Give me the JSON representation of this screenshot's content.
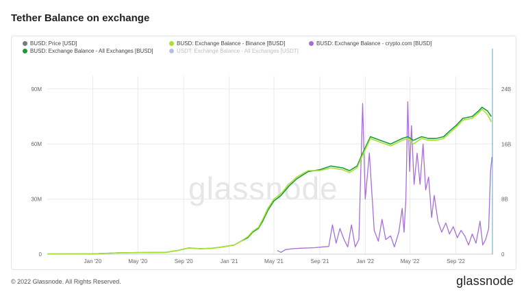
{
  "title": "Tether Balance on exchange",
  "watermark": "glassnode",
  "footer": {
    "copyright": "© 2022 Glassnode. All Rights Reserved.",
    "brand": "glassnode"
  },
  "colors": {
    "grid": "#e9e9e9",
    "all_exchanges": "#1a9a3a",
    "binance": "#a6e22e",
    "crypto_com": "#a46fd4",
    "price": "#7a7a7a",
    "usdt": "#2d4ea8",
    "usdt_bar": "#5aa6c8"
  },
  "legend": [
    {
      "label": "BUSD: Price [USD]",
      "color": "#7a7a7a",
      "faded": false
    },
    {
      "label": "BUSD: Exchange Balance - Binance [BUSD]",
      "color": "#a6e22e",
      "faded": false
    },
    {
      "label": "BUSD: Exchange Balance - crypto.com [BUSD]",
      "color": "#a46fd4",
      "faded": false
    },
    {
      "label": "BUSD: Exchange Balance - All Exchanges [BUSD]",
      "color": "#1a9a3a",
      "faded": false
    },
    {
      "label": "USDT: Exchange Balance - All Exchanges [USDT]",
      "color": "#2d4ea8",
      "faded": true
    }
  ],
  "chart_data": {
    "type": "line",
    "x_tick_labels": [
      "Jan '20",
      "May '20",
      "Sep '20",
      "Jan '21",
      "May '21",
      "Sep '21",
      "Jan '22",
      "May '22",
      "Sep '22"
    ],
    "x_tick_dates": [
      "2020-01-01",
      "2020-05-01",
      "2020-09-01",
      "2021-01-01",
      "2021-05-01",
      "2021-09-01",
      "2022-01-01",
      "2022-05-01",
      "2022-09-01"
    ],
    "x_range": [
      "2019-09-01",
      "2022-12-10"
    ],
    "y_left": {
      "ticks": [
        0,
        30,
        60,
        90
      ],
      "tick_labels": [
        "0",
        "30M",
        "60M",
        "90M"
      ],
      "range": [
        0,
        97
      ],
      "unit": "M"
    },
    "y_right": {
      "ticks": [
        0,
        8,
        16,
        24
      ],
      "tick_labels": [
        "0",
        "8B",
        "16B",
        "24B"
      ],
      "range": [
        0,
        25.9
      ],
      "unit": "B"
    },
    "grid": true,
    "legend_position": "top-left",
    "series": [
      {
        "name": "BUSD: Exchange Balance - All Exchanges [BUSD]",
        "axis": "left",
        "points": [
          [
            "2019-09-01",
            0.1
          ],
          [
            "2020-01-01",
            0.2
          ],
          [
            "2020-03-15",
            0.8
          ],
          [
            "2020-06-01",
            0.9
          ],
          [
            "2020-07-15",
            1.0
          ],
          [
            "2020-08-15",
            2.0
          ],
          [
            "2020-09-15",
            3.4
          ],
          [
            "2020-10-15",
            3.0
          ],
          [
            "2020-11-15",
            3.2
          ],
          [
            "2020-12-15",
            4.0
          ],
          [
            "2021-01-15",
            5.0
          ],
          [
            "2021-02-01",
            7.0
          ],
          [
            "2021-02-20",
            9.0
          ],
          [
            "2021-03-05",
            12.0
          ],
          [
            "2021-03-20",
            14.0
          ],
          [
            "2021-04-01",
            18.0
          ],
          [
            "2021-04-15",
            24.0
          ],
          [
            "2021-05-01",
            29.0
          ],
          [
            "2021-05-20",
            32.0
          ],
          [
            "2021-06-10",
            37.0
          ],
          [
            "2021-07-01",
            41.0
          ],
          [
            "2021-08-01",
            45.0
          ],
          [
            "2021-09-01",
            46.0
          ],
          [
            "2021-10-01",
            48.0
          ],
          [
            "2021-11-01",
            47.0
          ],
          [
            "2021-11-20",
            45.5
          ],
          [
            "2021-12-10",
            48.0
          ],
          [
            "2021-12-25",
            55.0
          ],
          [
            "2022-01-15",
            64.0
          ],
          [
            "2022-02-10",
            62.0
          ],
          [
            "2022-03-10",
            60.0
          ],
          [
            "2022-04-10",
            63.0
          ],
          [
            "2022-04-25",
            64.0
          ],
          [
            "2022-05-10",
            62.0
          ],
          [
            "2022-06-01",
            64.0
          ],
          [
            "2022-06-20",
            63.0
          ],
          [
            "2022-07-10",
            63.0
          ],
          [
            "2022-07-30",
            64.0
          ],
          [
            "2022-08-15",
            67.0
          ],
          [
            "2022-09-01",
            70.0
          ],
          [
            "2022-09-20",
            74.0
          ],
          [
            "2022-10-15",
            75.0
          ],
          [
            "2022-11-01",
            78.0
          ],
          [
            "2022-11-10",
            80.0
          ],
          [
            "2022-11-25",
            78.0
          ],
          [
            "2022-12-05",
            75.0
          ]
        ]
      },
      {
        "name": "BUSD: Exchange Balance - Binance [BUSD]",
        "axis": "left",
        "points": [
          [
            "2019-09-01",
            0.1
          ],
          [
            "2020-01-01",
            0.2
          ],
          [
            "2020-03-15",
            0.8
          ],
          [
            "2020-06-01",
            0.9
          ],
          [
            "2020-07-15",
            1.0
          ],
          [
            "2020-08-15",
            2.0
          ],
          [
            "2020-09-15",
            3.4
          ],
          [
            "2020-10-15",
            3.0
          ],
          [
            "2020-11-15",
            3.2
          ],
          [
            "2020-12-15",
            4.0
          ],
          [
            "2021-01-15",
            5.0
          ],
          [
            "2021-02-01",
            7.0
          ],
          [
            "2021-02-20",
            9.5
          ],
          [
            "2021-03-05",
            12.5
          ],
          [
            "2021-03-20",
            14.5
          ],
          [
            "2021-04-01",
            19.0
          ],
          [
            "2021-04-15",
            25.0
          ],
          [
            "2021-05-01",
            30.0
          ],
          [
            "2021-05-20",
            33.0
          ],
          [
            "2021-06-10",
            38.0
          ],
          [
            "2021-07-01",
            42.0
          ],
          [
            "2021-08-01",
            45.5
          ],
          [
            "2021-09-01",
            45.5
          ],
          [
            "2021-10-01",
            47.0
          ],
          [
            "2021-11-01",
            46.0
          ],
          [
            "2021-11-20",
            44.5
          ],
          [
            "2021-12-10",
            47.0
          ],
          [
            "2021-12-25",
            54.0
          ],
          [
            "2022-01-15",
            63.0
          ],
          [
            "2022-02-10",
            61.0
          ],
          [
            "2022-03-10",
            59.0
          ],
          [
            "2022-04-10",
            62.0
          ],
          [
            "2022-04-25",
            63.0
          ],
          [
            "2022-05-10",
            60.0
          ],
          [
            "2022-06-01",
            63.0
          ],
          [
            "2022-06-20",
            62.0
          ],
          [
            "2022-07-10",
            62.0
          ],
          [
            "2022-07-30",
            63.0
          ],
          [
            "2022-08-15",
            66.0
          ],
          [
            "2022-09-01",
            69.0
          ],
          [
            "2022-09-20",
            73.0
          ],
          [
            "2022-10-15",
            74.0
          ],
          [
            "2022-11-01",
            77.0
          ],
          [
            "2022-11-10",
            79.0
          ],
          [
            "2022-11-25",
            76.0
          ],
          [
            "2022-12-05",
            72.0
          ]
        ]
      },
      {
        "name": "BUSD: Exchange Balance - crypto.com [BUSD]",
        "axis": "left",
        "points": [
          [
            "2021-05-10",
            2.0
          ],
          [
            "2021-05-20",
            1.0
          ],
          [
            "2021-06-01",
            2.5
          ],
          [
            "2021-06-20",
            3.0
          ],
          [
            "2021-07-15",
            3.3
          ],
          [
            "2021-08-15",
            3.5
          ],
          [
            "2021-09-10",
            4.0
          ],
          [
            "2021-09-25",
            4.2
          ],
          [
            "2021-10-05",
            16.0
          ],
          [
            "2021-10-15",
            6.0
          ],
          [
            "2021-10-25",
            14.0
          ],
          [
            "2021-11-05",
            8.0
          ],
          [
            "2021-11-15",
            4.0
          ],
          [
            "2021-11-25",
            16.0
          ],
          [
            "2021-12-05",
            4.0
          ],
          [
            "2021-12-15",
            8.0
          ],
          [
            "2021-12-25",
            82.0
          ],
          [
            "2022-01-01",
            30.0
          ],
          [
            "2022-01-12",
            55.0
          ],
          [
            "2022-01-25",
            13.0
          ],
          [
            "2022-02-05",
            7.0
          ],
          [
            "2022-02-15",
            19.0
          ],
          [
            "2022-02-25",
            8.0
          ],
          [
            "2022-03-10",
            10.0
          ],
          [
            "2022-03-20",
            4.0
          ],
          [
            "2022-04-01",
            12.0
          ],
          [
            "2022-04-10",
            25.0
          ],
          [
            "2022-04-15",
            12.0
          ],
          [
            "2022-04-20",
            30.0
          ],
          [
            "2022-04-25",
            83.0
          ],
          [
            "2022-04-30",
            45.0
          ],
          [
            "2022-05-05",
            70.0
          ],
          [
            "2022-05-12",
            38.0
          ],
          [
            "2022-05-20",
            55.0
          ],
          [
            "2022-05-28",
            38.0
          ],
          [
            "2022-06-05",
            60.0
          ],
          [
            "2022-06-12",
            35.0
          ],
          [
            "2022-06-20",
            42.0
          ],
          [
            "2022-06-28",
            20.0
          ],
          [
            "2022-07-05",
            32.0
          ],
          [
            "2022-07-15",
            18.0
          ],
          [
            "2022-07-25",
            12.0
          ],
          [
            "2022-08-05",
            17.0
          ],
          [
            "2022-08-15",
            11.0
          ],
          [
            "2022-08-25",
            15.0
          ],
          [
            "2022-09-05",
            9.0
          ],
          [
            "2022-09-15",
            13.0
          ],
          [
            "2022-09-25",
            10.0
          ],
          [
            "2022-10-05",
            5.0
          ],
          [
            "2022-10-15",
            11.0
          ],
          [
            "2022-10-25",
            6.0
          ],
          [
            "2022-11-05",
            18.0
          ],
          [
            "2022-11-12",
            5.0
          ],
          [
            "2022-11-20",
            8.0
          ],
          [
            "2022-11-28",
            14.0
          ],
          [
            "2022-12-03",
            45.0
          ],
          [
            "2022-12-07",
            53.0
          ]
        ]
      },
      {
        "name": "BUSD: Price [USD]",
        "axis": "left",
        "points": [
          [
            "2019-09-01",
            0.0
          ],
          [
            "2022-12-10",
            0.0
          ]
        ]
      },
      {
        "name": "USDT: Exchange Balance - All Exchanges [USDT]",
        "axis": "right",
        "points": [
          [
            "2019-09-01",
            0.0
          ],
          [
            "2022-12-10",
            0.0
          ]
        ]
      }
    ]
  }
}
